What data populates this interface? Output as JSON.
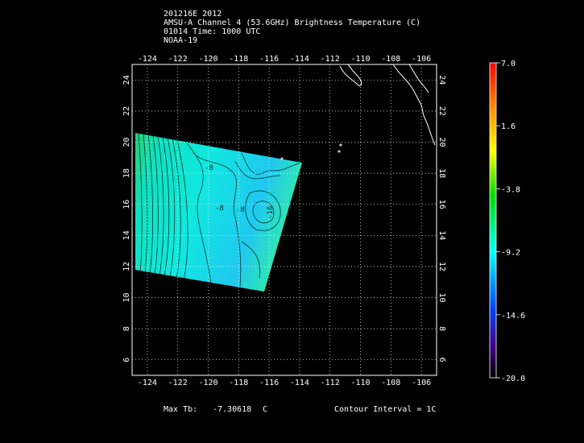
{
  "header": {
    "line1": "201216E 2012",
    "line2": "AMSU-A Channel 4 (53.6GHz) Brightness Temperature (C)",
    "line3": "01014 Time: 1000 UTC",
    "line4": "NOAA-19"
  },
  "map": {
    "lon_ticks": [
      "-124",
      "-122",
      "-120",
      "-118",
      "-116",
      "-114",
      "-112",
      "-110",
      "-108",
      "-106"
    ],
    "lat_ticks": [
      "24",
      "22",
      "20",
      "18",
      "16",
      "14",
      "12",
      "10",
      "8",
      "6"
    ],
    "lon_range": [
      -125,
      -105
    ],
    "lat_range": [
      5,
      25
    ],
    "contour_labels": [
      "-8",
      "-8",
      "-8",
      "-10"
    ],
    "colors": {
      "background": "#000000",
      "grid": "#ffffff",
      "coastline": "#ffffff"
    }
  },
  "colorbar": {
    "labels": [
      "7.0",
      "1.6",
      "-3.8",
      "-9.2",
      "-14.6",
      "-20.0"
    ],
    "range": [
      -20.0,
      7.0
    ],
    "colors": [
      "#ff0000",
      "#ff8800",
      "#ffff00",
      "#00dd00",
      "#00ffff",
      "#0044ff",
      "#440088",
      "#000000"
    ]
  },
  "footer": {
    "max_label": "Max Tb:",
    "max_value": "-7.30618",
    "max_unit": "C",
    "contour": "Contour Interval = 1C"
  }
}
